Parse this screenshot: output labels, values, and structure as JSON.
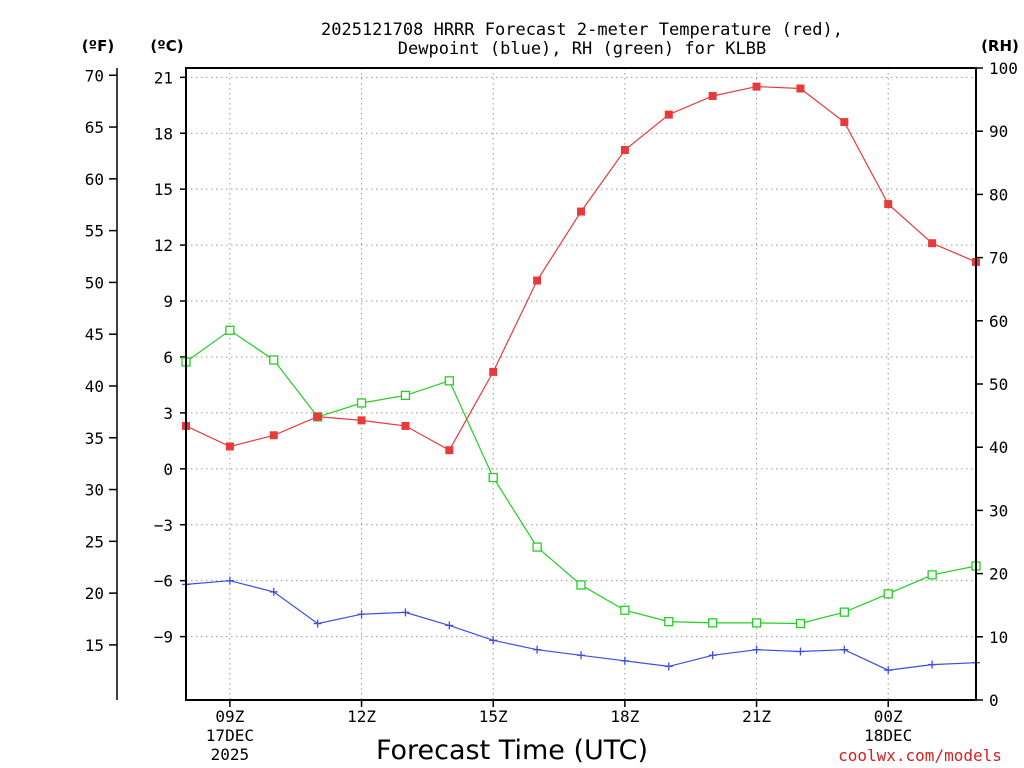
{
  "chart_data": {
    "type": "line",
    "title_line1": "2025121708 HRRR Forecast 2-meter Temperature (red),",
    "title_line2": "Dewpoint (blue), RH (green) for KLBB",
    "xlabel": "Forecast Time (UTC)",
    "credit": "coolwx.com/models",
    "units": {
      "fahrenheit": "(ºF)",
      "celsius": "(ºC)",
      "rh": "(RH)"
    },
    "x_hours_utc": [
      8,
      9,
      10,
      11,
      12,
      13,
      14,
      15,
      16,
      17,
      18,
      19,
      20,
      21,
      22,
      23,
      24,
      25,
      26
    ],
    "x_ticks": [
      {
        "hour": 9,
        "lines": [
          "09Z",
          "17DEC",
          "2025"
        ]
      },
      {
        "hour": 12,
        "lines": [
          "12Z"
        ]
      },
      {
        "hour": 15,
        "lines": [
          "15Z"
        ]
      },
      {
        "hour": 18,
        "lines": [
          "18Z"
        ]
      },
      {
        "hour": 21,
        "lines": [
          "21Z"
        ]
      },
      {
        "hour": 24,
        "lines": [
          "00Z",
          "18DEC"
        ]
      }
    ],
    "celsius_axis": {
      "ylim": [
        -12.4,
        21.5
      ],
      "ticks": [
        21,
        18,
        15,
        12,
        9,
        6,
        3,
        0,
        -3,
        -6,
        -9
      ]
    },
    "fahrenheit_axis": {
      "ticks": [
        70,
        65,
        60,
        55,
        50,
        45,
        40,
        35,
        30,
        25,
        20,
        15
      ]
    },
    "rh_axis": {
      "ylim": [
        0,
        100
      ],
      "ticks": [
        100,
        90,
        80,
        70,
        60,
        50,
        40,
        30,
        20,
        10,
        0
      ]
    },
    "series": [
      {
        "name": "2-meter Temperature",
        "axis": "celsius",
        "color": "#e83a3a",
        "marker": "filled-square",
        "values": [
          2.3,
          1.2,
          1.8,
          2.8,
          2.6,
          2.3,
          1.0,
          5.2,
          10.1,
          13.8,
          17.1,
          19.0,
          20.0,
          20.5,
          20.4,
          18.6,
          14.2,
          12.1,
          11.1
        ]
      },
      {
        "name": "Dewpoint",
        "axis": "celsius",
        "color": "#3a4ee0",
        "marker": "plus",
        "values": [
          -6.2,
          -6.0,
          -6.6,
          -8.3,
          -7.8,
          -7.7,
          -8.4,
          -9.2,
          -9.7,
          -10.0,
          -10.3,
          -10.6,
          -10.0,
          -9.7,
          -9.8,
          -9.7,
          -10.8,
          -10.5,
          -10.4
        ]
      },
      {
        "name": "RH",
        "axis": "rh",
        "color": "#22d022",
        "marker": "open-square",
        "values": [
          53.5,
          58.5,
          53.8,
          44.8,
          47.0,
          48.2,
          50.5,
          35.2,
          24.2,
          18.2,
          14.2,
          12.4,
          12.2,
          12.2,
          12.1,
          13.9,
          16.8,
          19.8,
          21.2
        ]
      }
    ]
  }
}
